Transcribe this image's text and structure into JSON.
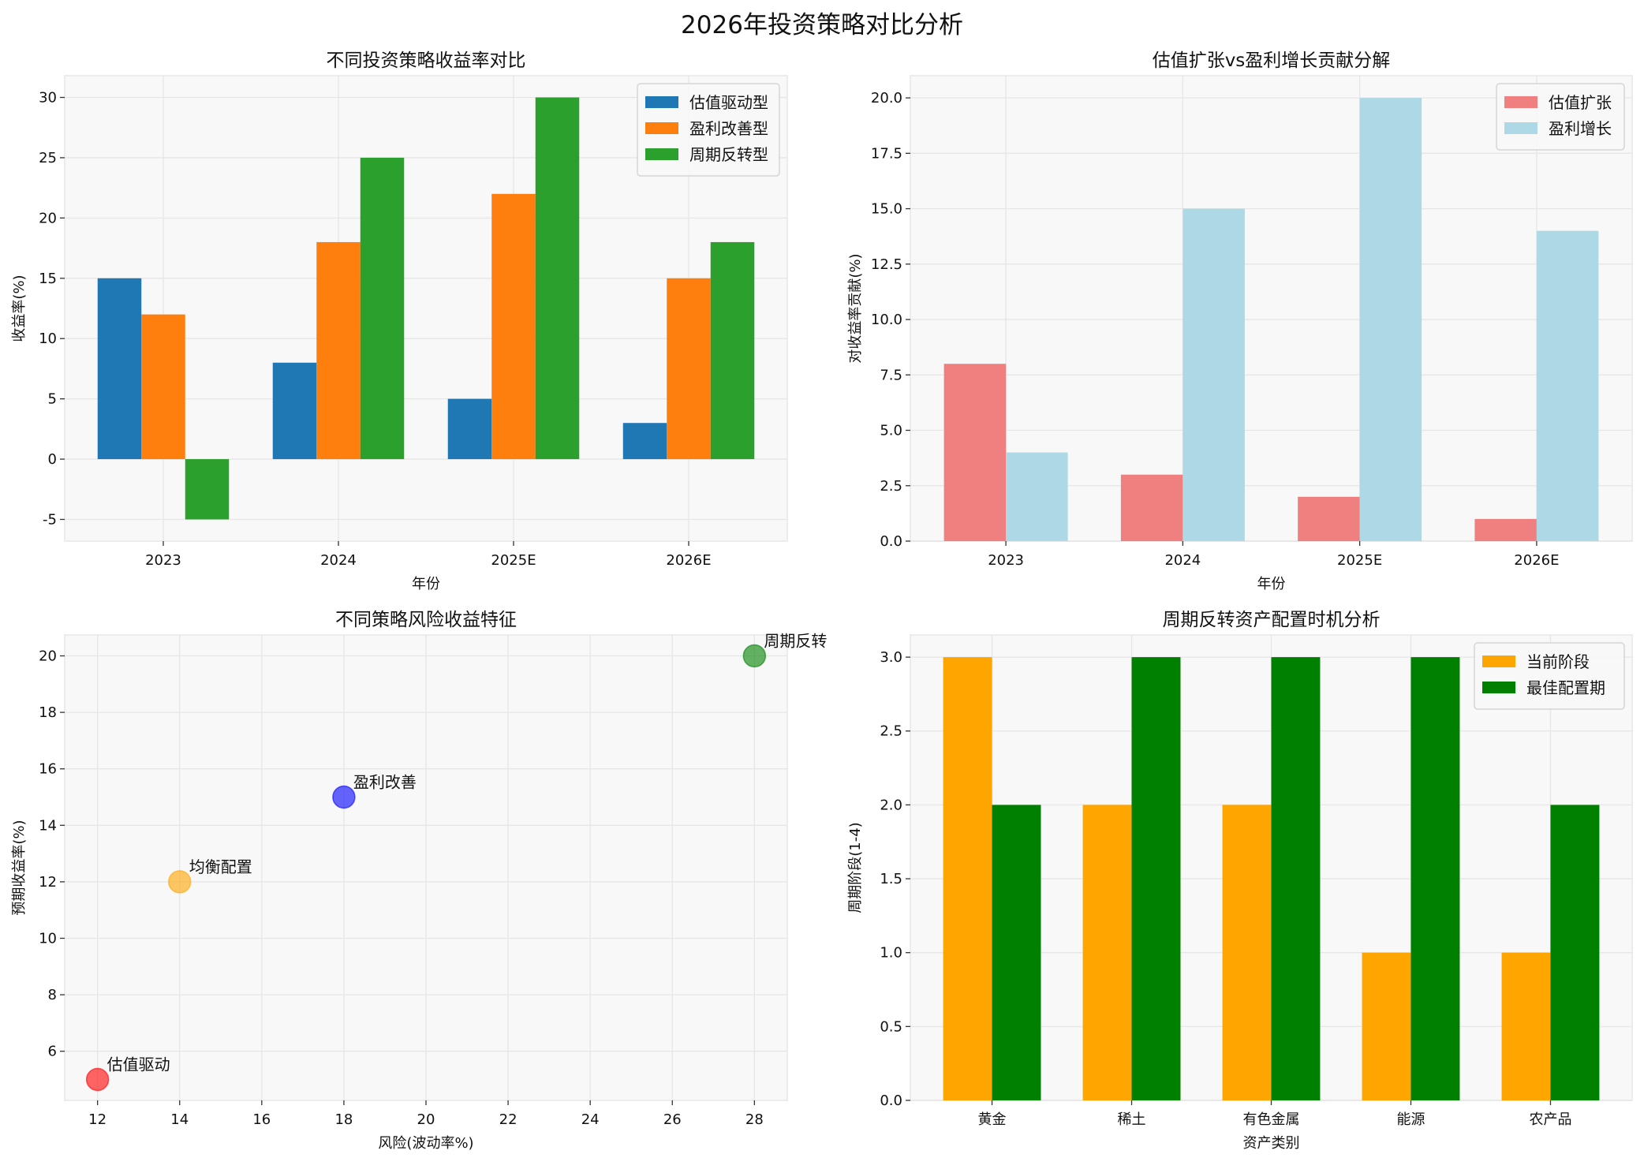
{
  "figure_title": "2026年投资策略对比分析",
  "chart_data": [
    {
      "type": "bar",
      "title": "不同投资策略收益率对比",
      "xlabel": "年份",
      "ylabel": "收益率(%)",
      "categories": [
        "2023",
        "2024",
        "2025E",
        "2026E"
      ],
      "ylim": [
        -6.8,
        31.8
      ],
      "yticks": [
        -5,
        0,
        5,
        10,
        15,
        20,
        25,
        30
      ],
      "grid": true,
      "legend": "top-right",
      "series": [
        {
          "name": "估值驱动型",
          "color": "#1f77b4",
          "values": [
            15,
            8,
            5,
            3
          ]
        },
        {
          "name": "盈利改善型",
          "color": "#ff7f0e",
          "values": [
            12,
            18,
            22,
            15
          ]
        },
        {
          "name": "周期反转型",
          "color": "#2ca02c",
          "values": [
            -5,
            25,
            30,
            18
          ]
        }
      ]
    },
    {
      "type": "bar",
      "title": "估值扩张vs盈利增长贡献分解",
      "xlabel": "年份",
      "ylabel": "对收益率贡献(%)",
      "categories": [
        "2023",
        "2024",
        "2025E",
        "2026E"
      ],
      "ylim": [
        0,
        21
      ],
      "yticks": [
        0.0,
        2.5,
        5.0,
        7.5,
        10.0,
        12.5,
        15.0,
        17.5,
        20.0
      ],
      "tick_decimals": 1,
      "grid": true,
      "legend": "top-right",
      "series": [
        {
          "name": "估值扩张",
          "color": "#f08080",
          "values": [
            8,
            3,
            2,
            1
          ]
        },
        {
          "name": "盈利增长",
          "color": "#add8e6",
          "values": [
            4,
            15,
            20,
            14
          ]
        }
      ]
    },
    {
      "type": "scatter",
      "title": "不同策略风险收益特征",
      "xlabel": "风险(波动率%)",
      "ylabel": "预期收益率(%)",
      "xlim": [
        11.2,
        28.8
      ],
      "ylim": [
        4.26,
        20.74
      ],
      "xticks": [
        12,
        14,
        16,
        18,
        20,
        22,
        24,
        26,
        28
      ],
      "yticks": [
        6,
        8,
        10,
        12,
        14,
        16,
        18,
        20
      ],
      "grid": true,
      "points": [
        {
          "label": "估值驱动",
          "x": 12,
          "y": 5,
          "color": "#ff0000"
        },
        {
          "label": "均衡配置",
          "x": 14,
          "y": 12,
          "color": "#ffa500"
        },
        {
          "label": "盈利改善",
          "x": 18,
          "y": 15,
          "color": "#0000ff"
        },
        {
          "label": "周期反转",
          "x": 28,
          "y": 20,
          "color": "#008000"
        }
      ]
    },
    {
      "type": "bar",
      "title": "周期反转资产配置时机分析",
      "xlabel": "资产类别",
      "ylabel": "周期阶段(1-4)",
      "categories": [
        "黄金",
        "稀土",
        "有色金属",
        "能源",
        "农产品"
      ],
      "ylim": [
        0,
        3.15
      ],
      "yticks": [
        0.0,
        0.5,
        1.0,
        1.5,
        2.0,
        2.5,
        3.0
      ],
      "tick_decimals": 1,
      "grid": true,
      "legend": "top-right",
      "series": [
        {
          "name": "当前阶段",
          "color": "#ffa500",
          "values": [
            3,
            2,
            2,
            1,
            1
          ]
        },
        {
          "name": "最佳配置期",
          "color": "#008000",
          "values": [
            2,
            3,
            3,
            3,
            2
          ]
        }
      ]
    }
  ]
}
